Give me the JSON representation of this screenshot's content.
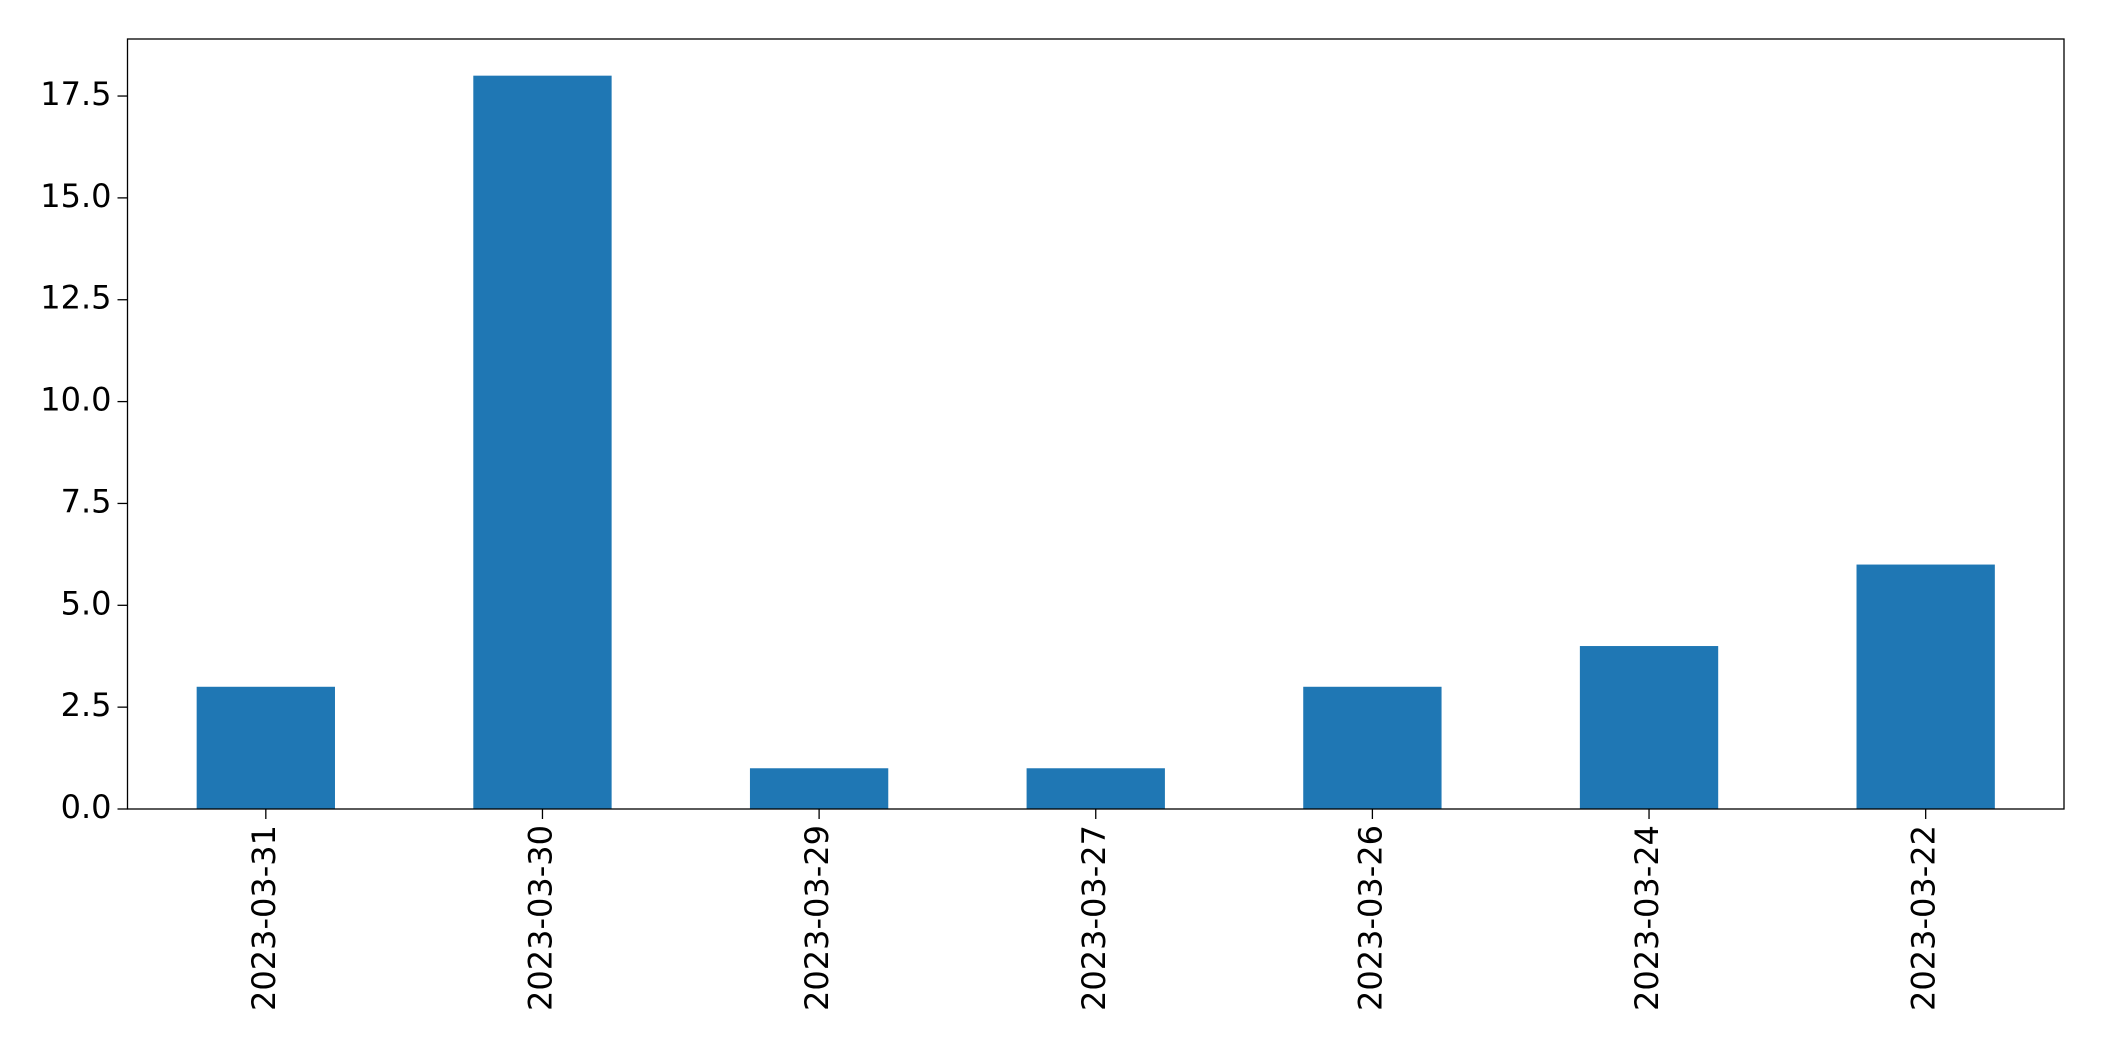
{
  "chart_data": {
    "type": "bar",
    "categories": [
      "2023-03-31",
      "2023-03-30",
      "2023-03-29",
      "2023-03-27",
      "2023-03-26",
      "2023-03-24",
      "2023-03-22"
    ],
    "values": [
      3,
      18,
      1,
      1,
      3,
      4,
      6
    ],
    "color": "#1f77b4",
    "ylim": [
      0,
      18.9
    ],
    "yticks": [
      {
        "value": 0,
        "label": "0.0"
      },
      2.5,
      {
        "value": 5,
        "label": "5.0"
      },
      7.5,
      {
        "value": 10,
        "label": "10.0"
      },
      12.5,
      {
        "value": 15,
        "label": "15.0"
      },
      17.5
    ],
    "grid": false
  }
}
